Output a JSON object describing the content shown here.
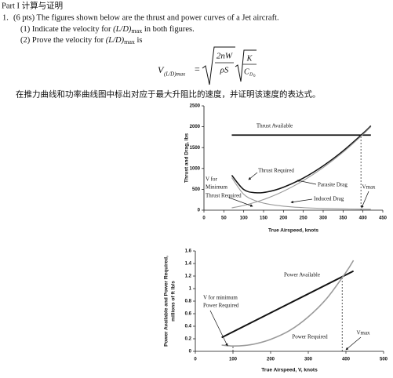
{
  "header": "Part I 计算与证明",
  "question": {
    "number": "1.",
    "text": "(6 pts) The figures shown below are the thrust and power curves of a Jet aircraft.",
    "part1": {
      "lead": "(1) Indicate the velocity for",
      "math": "(L/D)",
      "sub": "max",
      "tail": "in both figures."
    },
    "part2": {
      "lead": "(2) Prove the velocity for",
      "math": "(L/D)",
      "sub": "max",
      "tail": "is"
    }
  },
  "formula": {
    "lhs": "V",
    "lhs_sub": "(L/D)max",
    "equals": "=",
    "numerator": "2nW",
    "denominator": "ρS",
    "k": "K",
    "cd": "C",
    "cd_sub": "D",
    "cd_subsub": "0"
  },
  "instruction_cn": "在推力曲线和功率曲线图中标出对应于最大升阻比的速度，并证明该速度的表达式。",
  "chart_data": [
    {
      "type": "line",
      "xlabel": "True Airspeed, knots",
      "ylabel": [
        "Thrust and Drag, lbs"
      ],
      "xlim": [
        0,
        450
      ],
      "xticks": [
        0,
        50,
        100,
        150,
        200,
        250,
        300,
        350,
        400,
        450
      ],
      "ylim": [
        0,
        2500
      ],
      "yticks": [
        0,
        500,
        1000,
        1500,
        2000,
        2500
      ],
      "series": [
        {
          "name": "Thrust Available",
          "color": "#111111",
          "x": [
            70,
            420
          ],
          "values": [
            1800,
            1800
          ]
        },
        {
          "name": "Thrust Required",
          "color": "#111111",
          "x": [
            70,
            100,
            130,
            160,
            200,
            250,
            300,
            350,
            400,
            420
          ],
          "values": [
            836,
            495,
            418,
            439,
            550,
            770,
            1063,
            1420,
            1838,
            2022
          ]
        },
        {
          "name": "Parasite Drag",
          "color": "#9a9a9a",
          "x": [
            70,
            100,
            130,
            160,
            200,
            250,
            300,
            350,
            400,
            420
          ],
          "values": [
            56,
            113,
            192,
            290,
            454,
            709,
            1021,
            1389,
            1814,
            2000
          ]
        },
        {
          "name": "Induced Drag",
          "color": "#9a9a9a",
          "x": [
            70,
            100,
            130,
            160,
            200,
            250,
            300,
            350,
            400,
            420
          ],
          "values": [
            780,
            382,
            226,
            149,
            96,
            61,
            42,
            31,
            24,
            22
          ]
        }
      ],
      "annotations": [
        "V for",
        "Minimum",
        "Thrust Required",
        "Vmax"
      ],
      "reference_lines": [
        {
          "x": 395,
          "y": 1800
        }
      ]
    },
    {
      "type": "line",
      "xlabel": "True Airspeed, V,  knots",
      "ylabel": [
        "Power Available and Power Required,",
        "millions of ft lb/s"
      ],
      "xlim": [
        0,
        500
      ],
      "xticks": [
        0,
        100,
        200,
        300,
        400,
        500
      ],
      "ylim": [
        0,
        1.6
      ],
      "yticks": [
        0,
        0.2,
        0.4,
        0.6,
        0.8,
        1,
        1.2,
        1.4,
        1.6
      ],
      "series": [
        {
          "name": "Power Available",
          "color": "#111111",
          "x": [
            70,
            420
          ],
          "values": [
            0.22,
            1.28
          ]
        },
        {
          "name": "Power Required",
          "color": "#9a9a9a",
          "x": [
            70,
            100,
            130,
            160,
            200,
            250,
            300,
            350,
            400,
            420
          ],
          "values": [
            0.1,
            0.085,
            0.093,
            0.12,
            0.19,
            0.33,
            0.55,
            0.85,
            1.26,
            1.45
          ]
        }
      ],
      "annotations": [
        "V for minimum",
        "Power Required",
        "Vmax"
      ],
      "reference_lines": [
        {
          "x": 390,
          "y": 1.2
        },
        {
          "x": 100,
          "y": 0.08
        }
      ]
    }
  ]
}
